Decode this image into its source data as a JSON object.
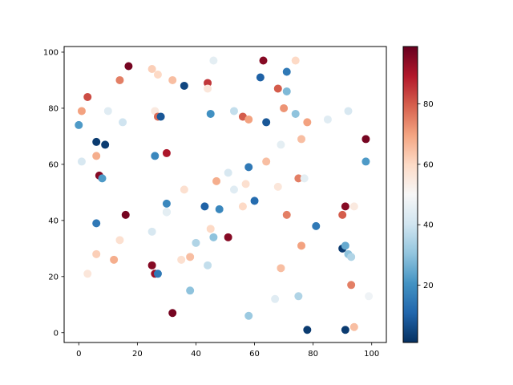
{
  "chart_data": {
    "type": "scatter",
    "title": "",
    "xlabel": "",
    "ylabel": "",
    "xlim": [
      -5,
      105
    ],
    "ylim": [
      -3.5,
      102
    ],
    "x_ticks": [
      0,
      20,
      40,
      60,
      80,
      100
    ],
    "y_ticks": [
      0,
      20,
      40,
      60,
      80,
      100
    ],
    "grid": false,
    "colormap": "RdBu_r",
    "color_range": [
      1,
      99
    ],
    "colorbar_ticks": [
      20,
      40,
      60,
      80
    ],
    "points": [
      {
        "x": 17,
        "y": 95,
        "c": 97
      },
      {
        "x": 25,
        "y": 94,
        "c": 62
      },
      {
        "x": 27,
        "y": 92,
        "c": 60
      },
      {
        "x": 14,
        "y": 90,
        "c": 75
      },
      {
        "x": 32,
        "y": 90,
        "c": 65
      },
      {
        "x": 36,
        "y": 88,
        "c": 5
      },
      {
        "x": 44,
        "y": 89,
        "c": 85
      },
      {
        "x": 44,
        "y": 87,
        "c": 56
      },
      {
        "x": 46,
        "y": 97,
        "c": 45
      },
      {
        "x": 63,
        "y": 97,
        "c": 95
      },
      {
        "x": 62,
        "y": 91,
        "c": 10
      },
      {
        "x": 71,
        "y": 93,
        "c": 15
      },
      {
        "x": 74,
        "y": 97,
        "c": 60
      },
      {
        "x": 68,
        "y": 87,
        "c": 80
      },
      {
        "x": 71,
        "y": 86,
        "c": 28
      },
      {
        "x": 3,
        "y": 84,
        "c": 82
      },
      {
        "x": 1,
        "y": 79,
        "c": 70
      },
      {
        "x": 10,
        "y": 79,
        "c": 44
      },
      {
        "x": 0,
        "y": 74,
        "c": 22
      },
      {
        "x": 15,
        "y": 75,
        "c": 40
      },
      {
        "x": 26,
        "y": 79,
        "c": 55
      },
      {
        "x": 27,
        "y": 77,
        "c": 78
      },
      {
        "x": 28,
        "y": 77,
        "c": 8
      },
      {
        "x": 45,
        "y": 78,
        "c": 20
      },
      {
        "x": 53,
        "y": 79,
        "c": 38
      },
      {
        "x": 56,
        "y": 77,
        "c": 80
      },
      {
        "x": 58,
        "y": 76,
        "c": 70
      },
      {
        "x": 64,
        "y": 75,
        "c": 8
      },
      {
        "x": 70,
        "y": 80,
        "c": 72
      },
      {
        "x": 74,
        "y": 78,
        "c": 30
      },
      {
        "x": 78,
        "y": 75,
        "c": 70
      },
      {
        "x": 85,
        "y": 76,
        "c": 44
      },
      {
        "x": 92,
        "y": 79,
        "c": 42
      },
      {
        "x": 6,
        "y": 68,
        "c": 3
      },
      {
        "x": 9,
        "y": 67,
        "c": 3
      },
      {
        "x": 6,
        "y": 63,
        "c": 68
      },
      {
        "x": 1,
        "y": 61,
        "c": 42
      },
      {
        "x": 26,
        "y": 63,
        "c": 18
      },
      {
        "x": 30,
        "y": 64,
        "c": 90
      },
      {
        "x": 69,
        "y": 67,
        "c": 45
      },
      {
        "x": 76,
        "y": 69,
        "c": 65
      },
      {
        "x": 98,
        "y": 69,
        "c": 97
      },
      {
        "x": 98,
        "y": 61,
        "c": 22
      },
      {
        "x": 7,
        "y": 56,
        "c": 95
      },
      {
        "x": 8,
        "y": 55,
        "c": 22
      },
      {
        "x": 36,
        "y": 51,
        "c": 58
      },
      {
        "x": 47,
        "y": 54,
        "c": 68
      },
      {
        "x": 51,
        "y": 57,
        "c": 42
      },
      {
        "x": 53,
        "y": 51,
        "c": 44
      },
      {
        "x": 57,
        "y": 53,
        "c": 58
      },
      {
        "x": 58,
        "y": 59,
        "c": 15
      },
      {
        "x": 64,
        "y": 61,
        "c": 65
      },
      {
        "x": 68,
        "y": 52,
        "c": 56
      },
      {
        "x": 75,
        "y": 55,
        "c": 75
      },
      {
        "x": 77,
        "y": 55,
        "c": 45
      },
      {
        "x": 6,
        "y": 39,
        "c": 15
      },
      {
        "x": 16,
        "y": 42,
        "c": 97
      },
      {
        "x": 30,
        "y": 46,
        "c": 18
      },
      {
        "x": 30,
        "y": 43,
        "c": 35
      },
      {
        "x": 30,
        "y": 43,
        "c": 45
      },
      {
        "x": 43,
        "y": 45,
        "c": 10
      },
      {
        "x": 48,
        "y": 44,
        "c": 18
      },
      {
        "x": 56,
        "y": 45,
        "c": 60
      },
      {
        "x": 60,
        "y": 47,
        "c": 12
      },
      {
        "x": 71,
        "y": 42,
        "c": 75
      },
      {
        "x": 81,
        "y": 38,
        "c": 15
      },
      {
        "x": 90,
        "y": 42,
        "c": 80
      },
      {
        "x": 91,
        "y": 45,
        "c": 95
      },
      {
        "x": 94,
        "y": 45,
        "c": 55
      },
      {
        "x": 14,
        "y": 33,
        "c": 58
      },
      {
        "x": 25,
        "y": 36,
        "c": 42
      },
      {
        "x": 40,
        "y": 32,
        "c": 35
      },
      {
        "x": 45,
        "y": 37,
        "c": 60
      },
      {
        "x": 46,
        "y": 34,
        "c": 30
      },
      {
        "x": 51,
        "y": 34,
        "c": 95
      },
      {
        "x": 76,
        "y": 31,
        "c": 70
      },
      {
        "x": 90,
        "y": 30,
        "c": 3
      },
      {
        "x": 91,
        "y": 31,
        "c": 25
      },
      {
        "x": 92,
        "y": 28,
        "c": 30
      },
      {
        "x": 93,
        "y": 27,
        "c": 35
      },
      {
        "x": 3,
        "y": 21,
        "c": 56
      },
      {
        "x": 6,
        "y": 28,
        "c": 62
      },
      {
        "x": 12,
        "y": 26,
        "c": 68
      },
      {
        "x": 25,
        "y": 24,
        "c": 95
      },
      {
        "x": 26,
        "y": 21,
        "c": 92
      },
      {
        "x": 27,
        "y": 21,
        "c": 15
      },
      {
        "x": 35,
        "y": 26,
        "c": 58
      },
      {
        "x": 38,
        "y": 27,
        "c": 65
      },
      {
        "x": 44,
        "y": 24,
        "c": 38
      },
      {
        "x": 69,
        "y": 23,
        "c": 65
      },
      {
        "x": 38,
        "y": 15,
        "c": 30
      },
      {
        "x": 32,
        "y": 7,
        "c": 97
      },
      {
        "x": 58,
        "y": 6,
        "c": 32
      },
      {
        "x": 67,
        "y": 12,
        "c": 44
      },
      {
        "x": 75,
        "y": 13,
        "c": 35
      },
      {
        "x": 78,
        "y": 1,
        "c": 3
      },
      {
        "x": 91,
        "y": 1,
        "c": 3
      },
      {
        "x": 93,
        "y": 17,
        "c": 75
      },
      {
        "x": 94,
        "y": 2,
        "c": 65
      },
      {
        "x": 99,
        "y": 13,
        "c": 48
      }
    ]
  }
}
